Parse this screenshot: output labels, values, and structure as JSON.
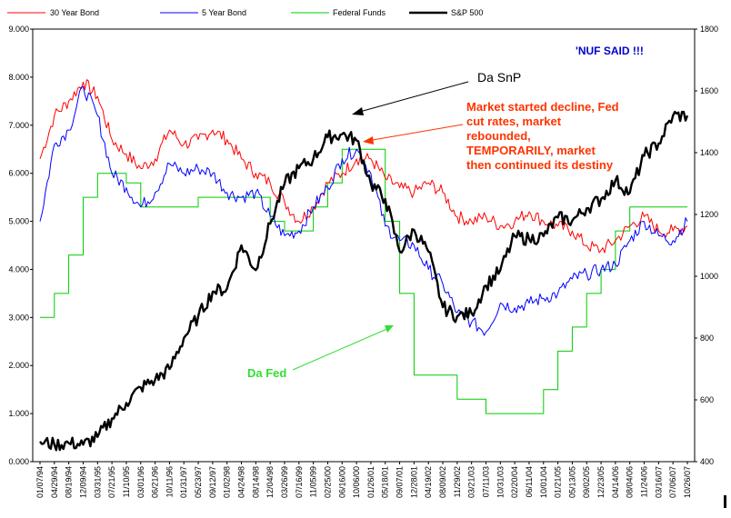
{
  "chart_data": {
    "type": "line",
    "legend_position": "top",
    "x_labels": [
      "01/07/94",
      "04/29/94",
      "08/19/94",
      "12/09/94",
      "03/31/95",
      "07/21/95",
      "11/10/95",
      "03/01/96",
      "06/21/96",
      "10/11/96",
      "01/31/97",
      "05/23/97",
      "09/12/97",
      "01/02/98",
      "04/24/98",
      "08/14/98",
      "12/04/98",
      "03/26/99",
      "07/16/99",
      "11/05/99",
      "02/25/00",
      "06/16/00",
      "10/06/00",
      "01/26/01",
      "05/18/01",
      "09/07/01",
      "12/28/01",
      "04/19/02",
      "08/09/02",
      "11/29/02",
      "03/21/03",
      "07/11/03",
      "10/31/03",
      "02/20/04",
      "06/11/04",
      "10/01/04",
      "01/21/05",
      "05/13/05",
      "09/02/05",
      "12/23/05",
      "04/14/06",
      "08/04/06",
      "11/24/06",
      "03/16/07",
      "07/06/07",
      "10/26/07"
    ],
    "y_left": {
      "range": [
        0,
        9
      ],
      "ticks": [
        "0.000",
        "1.000",
        "2.000",
        "3.000",
        "4.000",
        "5.000",
        "6.000",
        "7.000",
        "8.000",
        "9.000"
      ],
      "ticks_numeric": [
        0,
        1,
        2,
        3,
        4,
        5,
        6,
        7,
        8,
        9
      ]
    },
    "y_right": {
      "range": [
        400,
        1800
      ],
      "ticks": [
        "400",
        "600",
        "800",
        "1000",
        "1200",
        "1400",
        "1600",
        "1800"
      ],
      "ticks_numeric": [
        400,
        600,
        800,
        1000,
        1200,
        1400,
        1600,
        1800
      ]
    },
    "series": [
      {
        "name": "30 Year Bond",
        "axis": "left",
        "color": "#ff0000",
        "values": [
          6.3,
          7.2,
          7.5,
          7.9,
          7.6,
          6.7,
          6.4,
          6.1,
          6.3,
          6.9,
          6.6,
          6.7,
          6.9,
          6.7,
          6.3,
          6.0,
          5.8,
          5.4,
          5.0,
          5.3,
          5.8,
          6.0,
          6.3,
          6.3,
          5.9,
          5.7,
          5.6,
          5.8,
          5.6,
          5.1,
          5.0,
          5.1,
          4.9,
          5.0,
          5.2,
          5.0,
          4.9,
          4.8,
          4.5,
          4.4,
          4.6,
          4.9,
          5.1,
          4.8,
          4.8,
          4.9
        ]
      },
      {
        "name": "5 Year Bond",
        "axis": "left",
        "color": "#0000ff",
        "values": [
          5.0,
          6.6,
          6.9,
          7.8,
          7.2,
          6.0,
          5.7,
          5.3,
          5.6,
          6.2,
          6.0,
          6.1,
          6.0,
          5.6,
          5.5,
          5.6,
          5.1,
          4.7,
          4.8,
          5.3,
          5.7,
          6.3,
          6.5,
          6.0,
          4.9,
          4.6,
          4.5,
          4.0,
          3.7,
          3.1,
          2.9,
          2.7,
          3.3,
          3.2,
          3.3,
          3.4,
          3.5,
          3.8,
          3.9,
          4.0,
          4.1,
          4.6,
          5.0,
          4.7,
          4.6,
          5.0
        ]
      },
      {
        "name": "Federal Funds",
        "axis": "left",
        "color": "#00cc00",
        "values": [
          3.0,
          3.5,
          4.3,
          5.5,
          6.0,
          6.0,
          5.8,
          5.3,
          5.3,
          5.3,
          5.3,
          5.5,
          5.5,
          5.5,
          5.5,
          5.5,
          5.0,
          4.8,
          4.8,
          5.3,
          5.8,
          6.5,
          6.5,
          6.5,
          5.0,
          3.5,
          1.8,
          1.8,
          1.8,
          1.3,
          1.3,
          1.0,
          1.0,
          1.0,
          1.0,
          1.5,
          2.3,
          2.8,
          3.5,
          4.0,
          4.8,
          5.3,
          5.3,
          5.3,
          5.3,
          5.3
        ]
      },
      {
        "name": "S&P 500",
        "axis": "right",
        "color": "#000000",
        "values": [
          465,
          455,
          460,
          455,
          480,
          540,
          590,
          640,
          665,
          700,
          800,
          870,
          950,
          960,
          1100,
          1020,
          1170,
          1300,
          1350,
          1380,
          1450,
          1460,
          1440,
          1300,
          1250,
          1080,
          1150,
          1080,
          900,
          870,
          880,
          970,
          1020,
          1130,
          1120,
          1130,
          1190,
          1180,
          1220,
          1250,
          1310,
          1270,
          1390,
          1430,
          1520,
          1520
        ]
      }
    ],
    "annotations": [
      {
        "text": "'NUF SAID !!!",
        "color": "#0000cc"
      },
      {
        "text": "Da SnP",
        "color": "#000000"
      },
      {
        "text": "Market started decline, Fed",
        "color": "#ff3300"
      },
      {
        "text": "cut rates,  market",
        "color": "#ff3300"
      },
      {
        "text": "rebounded,",
        "color": "#ff3300"
      },
      {
        "text": "TEMPORARILY, market",
        "color": "#ff3300"
      },
      {
        "text": "then continued its destiny",
        "color": "#ff3300"
      },
      {
        "text": "Da Fed",
        "color": "#33dd33"
      }
    ],
    "grid": false,
    "title": ""
  }
}
